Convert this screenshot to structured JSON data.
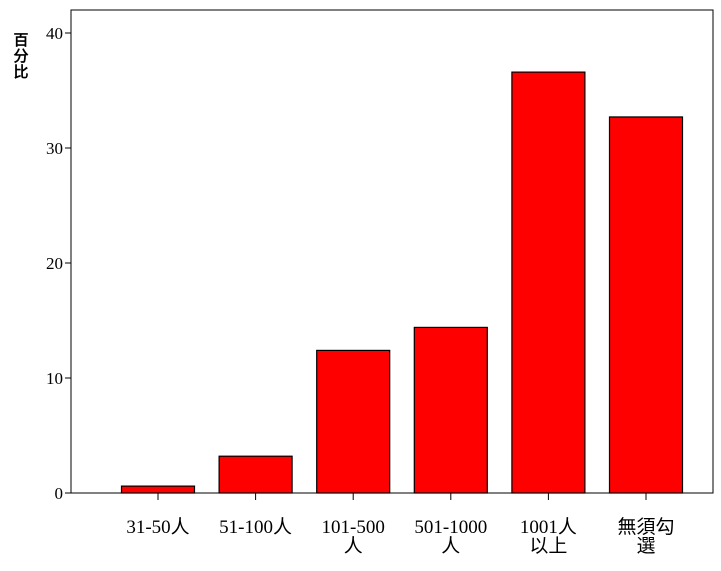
{
  "chart_data": {
    "type": "bar",
    "title": "",
    "xlabel": "",
    "ylabel": "百分比",
    "categories": [
      [
        "31-50人"
      ],
      [
        "51-100人"
      ],
      [
        "101-500",
        "人"
      ],
      [
        "501-1000",
        "人"
      ],
      [
        "1001人",
        "以上"
      ],
      [
        "無須勾",
        "選"
      ]
    ],
    "values": [
      0.6,
      3.2,
      12.4,
      14.4,
      36.6,
      32.7
    ],
    "ylim": [
      0,
      42
    ],
    "yticks": [
      0,
      10,
      20,
      30,
      40
    ],
    "grid": false,
    "bar_color": "#ff0000",
    "bar_edge_color": "#000000"
  }
}
